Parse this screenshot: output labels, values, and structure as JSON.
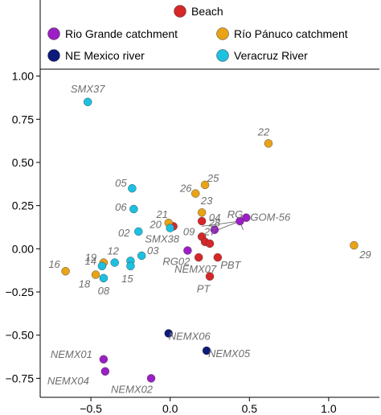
{
  "chart_data": {
    "type": "scatter",
    "x_ticks": [
      -0.5,
      0.0,
      0.5,
      1.0
    ],
    "x_tick_labels": [
      "−0.5",
      "0.0",
      "0.5",
      "1.0"
    ],
    "y_ticks": [
      1.0,
      0.75,
      0.5,
      0.25,
      0.0,
      -0.25,
      -0.5,
      -0.75
    ],
    "y_tick_labels": [
      "1.00",
      "0.75",
      "0.50",
      "0.25",
      "0.00",
      "−0.25",
      "−0.50",
      "−0.75"
    ],
    "xlim": [
      -0.82,
      1.32
    ],
    "ylim": [
      -0.86,
      1.04
    ],
    "grid": false,
    "legend_position": "top",
    "series": [
      {
        "name": "Beach",
        "color": "#d62728",
        "points": [
          {
            "x": 0.02,
            "y": 0.13,
            "label": "20"
          },
          {
            "x": 0.2,
            "y": 0.16,
            "label": "04"
          },
          {
            "x": 0.2,
            "y": 0.07,
            "label": "09"
          },
          {
            "x": 0.22,
            "y": 0.04,
            "label": "27"
          },
          {
            "x": 0.25,
            "y": 0.03,
            "label": ""
          },
          {
            "x": 0.18,
            "y": -0.05,
            "label": "NEMX07"
          },
          {
            "x": 0.3,
            "y": -0.05,
            "label": "PBT"
          },
          {
            "x": 0.25,
            "y": -0.16,
            "label": "PT"
          }
        ]
      },
      {
        "name": "Rio Grande catchment",
        "color": "#9b1fc4",
        "points": [
          {
            "x": 0.28,
            "y": 0.11,
            "label": "28"
          },
          {
            "x": 0.44,
            "y": 0.16,
            "label": "RG"
          },
          {
            "x": 0.48,
            "y": 0.18,
            "label": "GOM-56"
          },
          {
            "x": 0.11,
            "y": -0.01,
            "label": "RG02"
          },
          {
            "x": -0.42,
            "y": -0.64,
            "label": "NEMX01"
          },
          {
            "x": -0.41,
            "y": -0.71,
            "label": "NEMX04"
          },
          {
            "x": -0.12,
            "y": -0.75,
            "label": "NEMX02"
          }
        ]
      },
      {
        "name": "Río Pánuco catchment",
        "color": "#e8a317",
        "points": [
          {
            "x": 0.62,
            "y": 0.61,
            "label": "22"
          },
          {
            "x": 0.22,
            "y": 0.37,
            "label": "25"
          },
          {
            "x": 0.16,
            "y": 0.32,
            "label": "26"
          },
          {
            "x": 0.2,
            "y": 0.21,
            "label": "23"
          },
          {
            "x": -0.01,
            "y": 0.15,
            "label": "21"
          },
          {
            "x": 1.16,
            "y": 0.02,
            "label": "29"
          },
          {
            "x": -0.66,
            "y": -0.13,
            "label": "16"
          },
          {
            "x": -0.42,
            "y": -0.08,
            "label": "19"
          },
          {
            "x": -0.47,
            "y": -0.15,
            "label": "18"
          }
        ]
      },
      {
        "name": "NE Mexico river",
        "color": "#0d1a7a",
        "points": [
          {
            "x": -0.01,
            "y": -0.49,
            "label": "NEMX06"
          },
          {
            "x": 0.23,
            "y": -0.59,
            "label": "NEMX05"
          }
        ]
      },
      {
        "name": "Veracruz River",
        "color": "#1cc0e0",
        "points": [
          {
            "x": -0.52,
            "y": 0.85,
            "label": "SMX37"
          },
          {
            "x": -0.24,
            "y": 0.35,
            "label": "05"
          },
          {
            "x": -0.23,
            "y": 0.23,
            "label": "06"
          },
          {
            "x": -0.2,
            "y": 0.1,
            "label": "02"
          },
          {
            "x": -0.43,
            "y": -0.1,
            "label": "14"
          },
          {
            "x": -0.35,
            "y": -0.08,
            "label": "12"
          },
          {
            "x": -0.25,
            "y": -0.07,
            "label": ""
          },
          {
            "x": -0.18,
            "y": -0.04,
            "label": "03"
          },
          {
            "x": -0.25,
            "y": -0.1,
            "label": "15"
          },
          {
            "x": -0.42,
            "y": -0.17,
            "label": "08"
          },
          {
            "x": 0.0,
            "y": 0.12,
            "label": "SMX38"
          }
        ]
      }
    ]
  }
}
